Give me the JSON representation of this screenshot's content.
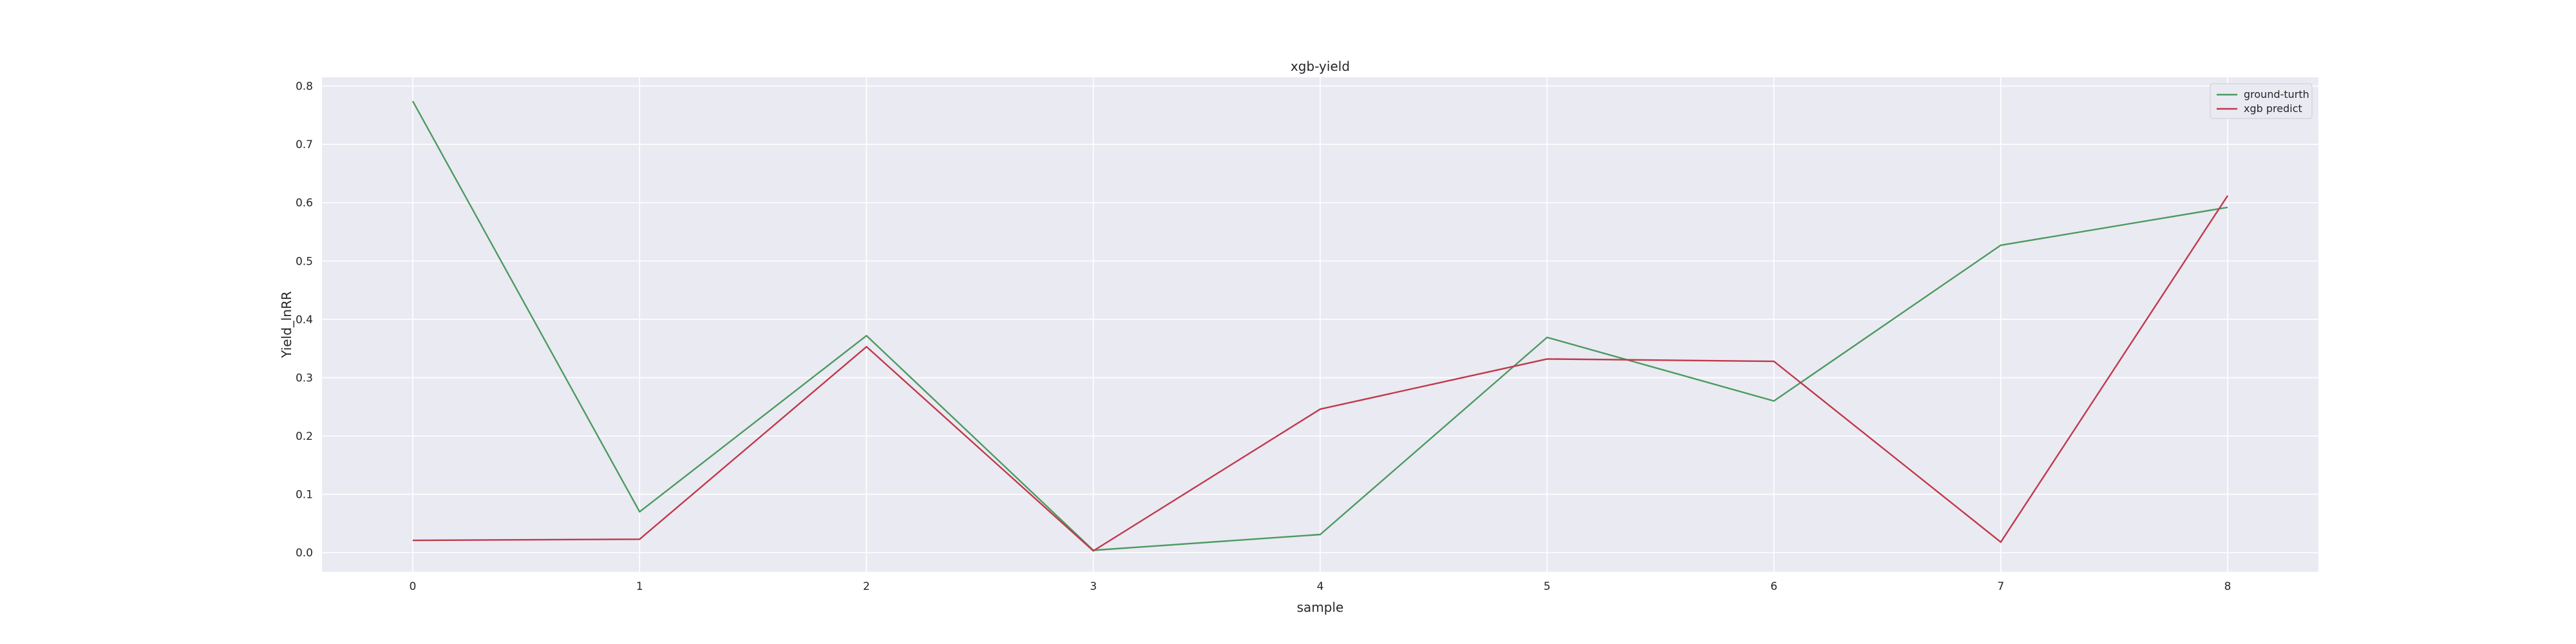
{
  "chart_data": {
    "type": "line",
    "title": "xgb-yield",
    "xlabel": "sample",
    "ylabel": "Yield_lnRR",
    "x": [
      0,
      1,
      2,
      3,
      4,
      5,
      6,
      7,
      8
    ],
    "xlim": [
      -0.4,
      8.4
    ],
    "ylim": [
      -0.033,
      0.815
    ],
    "x_ticks": [
      "0",
      "1",
      "2",
      "3",
      "4",
      "5",
      "6",
      "7",
      "8"
    ],
    "y_ticks": [
      "0.0",
      "0.1",
      "0.2",
      "0.3",
      "0.4",
      "0.5",
      "0.6",
      "0.7",
      "0.8"
    ],
    "grid": true,
    "legend_position": "top-right",
    "series": [
      {
        "name": "ground-turth",
        "color": "#4c9a5f",
        "values": [
          0.774,
          0.07,
          0.372,
          0.004,
          0.031,
          0.369,
          0.26,
          0.527,
          0.592
        ]
      },
      {
        "name": "xgb predict",
        "color": "#c0394b",
        "values": [
          0.021,
          0.023,
          0.353,
          0.003,
          0.246,
          0.332,
          0.328,
          0.018,
          0.612
        ]
      }
    ]
  }
}
